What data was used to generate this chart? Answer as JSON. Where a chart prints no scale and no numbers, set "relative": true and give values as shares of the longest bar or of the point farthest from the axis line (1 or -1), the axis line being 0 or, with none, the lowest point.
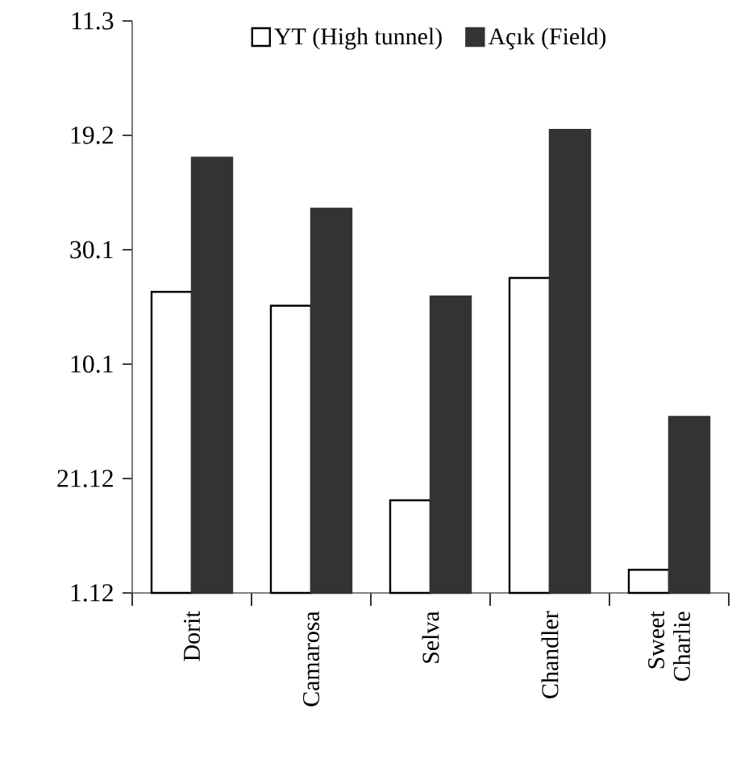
{
  "chart_data": {
    "type": "bar",
    "categories": [
      "Dorit",
      "Camarosa",
      "Selva",
      "Chandler",
      "Sweet Charlie"
    ],
    "series": [
      {
        "name": "YT (High tunnel)",
        "color": "#ffffff",
        "values": [
          0.65,
          0.62,
          0.2,
          0.68,
          0.05
        ]
      },
      {
        "name": "Açık (Field)",
        "color": "#333333",
        "values": [
          0.94,
          0.83,
          0.64,
          1,
          0.38
        ]
      }
    ],
    "relative": true,
    "annotations": [
      "11.3",
      "19.2",
      "30.1",
      "10.1",
      "21.12",
      "1.12"
    ],
    "legend": "top"
  }
}
